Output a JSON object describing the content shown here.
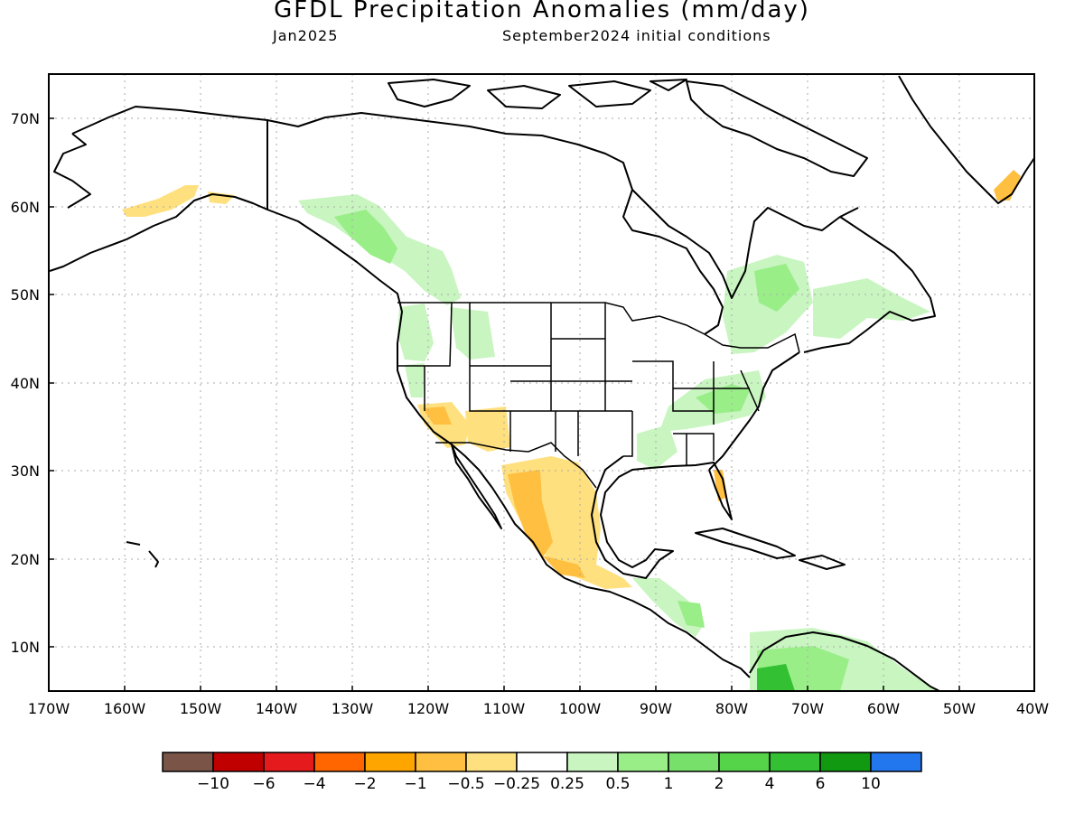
{
  "title": "GFDL Precipitation Anomalies (mm/day)",
  "subtitle_left": "Jan2025",
  "subtitle_right": "September2024 initial conditions",
  "lat_labels": [
    "70N",
    "60N",
    "50N",
    "40N",
    "30N",
    "20N",
    "10N"
  ],
  "lon_labels": [
    "170W",
    "160W",
    "150W",
    "140W",
    "130W",
    "120W",
    "110W",
    "100W",
    "90W",
    "80W",
    "70W",
    "60W",
    "50W",
    "40W"
  ],
  "colorbar": {
    "colors": [
      "#7b5448",
      "#c00000",
      "#e41a1c",
      "#ff6600",
      "#ffa500",
      "#ffbf40",
      "#ffe07f",
      "#ffffff",
      "#c8f5c0",
      "#99ee88",
      "#77e06a",
      "#55d44a",
      "#33c033",
      "#119911",
      "#2277ee"
    ],
    "labels": [
      "−10",
      "−6",
      "−4",
      "−2",
      "−1",
      "−0.5",
      "−0.25",
      "0.25",
      "0.5",
      "1",
      "2",
      "4",
      "6",
      "10"
    ]
  }
}
